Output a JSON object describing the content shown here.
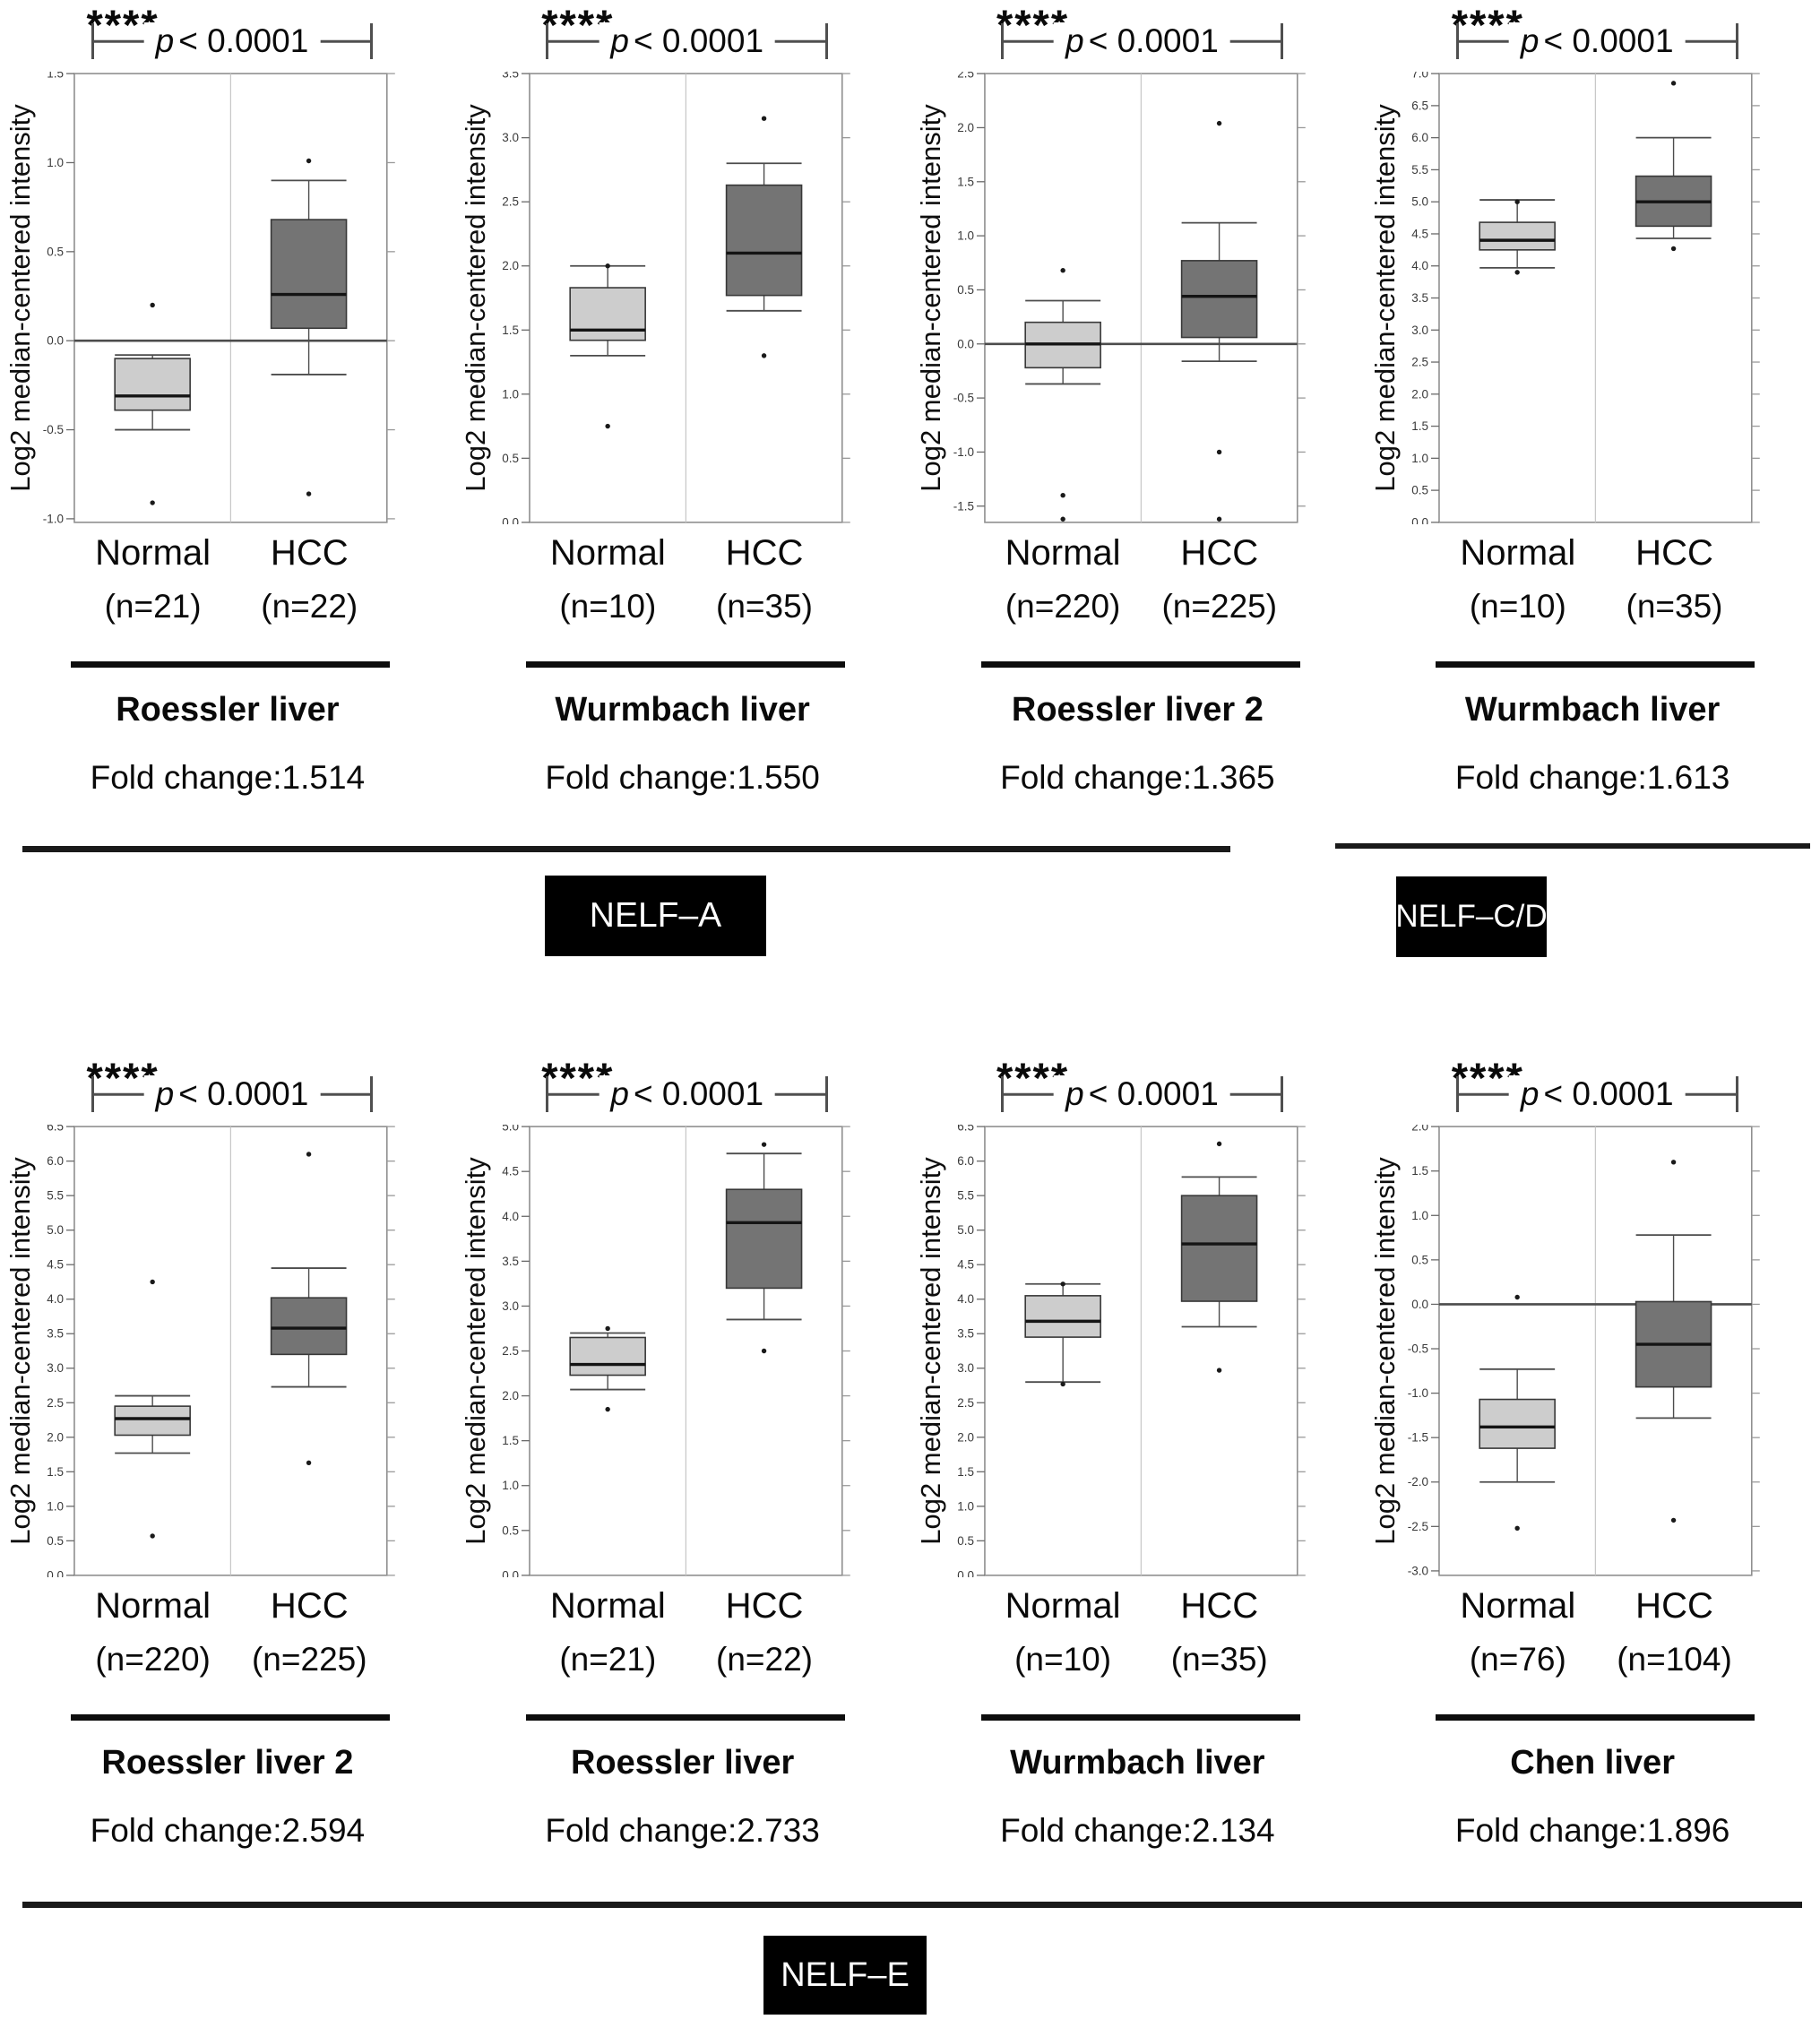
{
  "figure": {
    "significance_stars": "****",
    "p_symbol": "p",
    "p_rest": "< 0.0001",
    "ylabel": "Log2 median-centered intensity",
    "group_categories": [
      "Normal",
      "HCC"
    ],
    "colors": {
      "normal_box_fill": "#cdcdcd",
      "hcc_box_fill": "#747474",
      "box_stroke": "#383838",
      "median_line": "#141414",
      "whisker": "#4c4c4c",
      "frame": "#8f8f8f",
      "divider": "#c6c6c6",
      "zero_line": "#4c4c4c",
      "section_tag_bg": "#000000",
      "section_tag_text": "#ffffff"
    },
    "sections": [
      {
        "label": "NELF–A"
      },
      {
        "label": "NELF–C/D"
      },
      {
        "label": "NELF–E"
      }
    ]
  },
  "chart_data": [
    {
      "type": "box",
      "row": 0,
      "col": 0,
      "section": "NELF–A",
      "title": "Roessler liver",
      "dataset": "Roessler liver",
      "fold_change": 1.514,
      "fold_change_label": "Fold change:1.514",
      "significance": "****",
      "p_label": "p < 0.0001",
      "ylabel": "Log2 median-centered intensity",
      "categories": [
        "Normal",
        "HCC"
      ],
      "y_axis": {
        "top": 1.5,
        "bottom": -1.02,
        "ticks": [
          1.5,
          1.0,
          0.5,
          0.0,
          -0.5,
          -1.0
        ]
      },
      "zero_line": true,
      "groups": [
        {
          "label": "Normal",
          "n": "(n=21)",
          "fill": "#cdcdcd",
          "whisker_low": -0.5,
          "q1": -0.39,
          "median": -0.31,
          "q3": -0.1,
          "whisker_high": -0.08,
          "outliers": [
            0.2,
            -0.91
          ]
        },
        {
          "label": "HCC",
          "n": "(n=22)",
          "fill": "#747474",
          "whisker_low": -0.19,
          "q1": 0.07,
          "median": 0.26,
          "q3": 0.68,
          "whisker_high": 0.9,
          "outliers": [
            1.01,
            -0.86
          ]
        }
      ]
    },
    {
      "type": "box",
      "row": 0,
      "col": 1,
      "section": "NELF–A",
      "title": "Wurmbach liver",
      "dataset": "Wurmbach liver",
      "fold_change": 1.55,
      "fold_change_label": "Fold change:1.550",
      "significance": "****",
      "p_label": "p < 0.0001",
      "ylabel": "Log2 median-centered intensity",
      "categories": [
        "Normal",
        "HCC"
      ],
      "y_axis": {
        "top": 3.5,
        "bottom": 0.0,
        "ticks": [
          3.5,
          3.0,
          2.5,
          2.0,
          1.5,
          1.0,
          0.5,
          0.0
        ]
      },
      "zero_line": false,
      "groups": [
        {
          "label": "Normal",
          "n": "(n=10)",
          "fill": "#cdcdcd",
          "whisker_low": 1.3,
          "q1": 1.42,
          "median": 1.5,
          "q3": 1.83,
          "whisker_high": 2.0,
          "outliers": [
            2.0,
            0.75
          ]
        },
        {
          "label": "HCC",
          "n": "(n=35)",
          "fill": "#747474",
          "whisker_low": 1.65,
          "q1": 1.77,
          "median": 2.1,
          "q3": 2.63,
          "whisker_high": 2.8,
          "outliers": [
            3.15,
            1.3
          ]
        }
      ]
    },
    {
      "type": "box",
      "row": 0,
      "col": 2,
      "section": "NELF–A",
      "title": "Roessler liver 2",
      "dataset": "Roessler liver 2",
      "fold_change": 1.365,
      "fold_change_label": "Fold change:1.365",
      "significance": "****",
      "p_label": "p < 0.0001",
      "ylabel": "Log2 median-centered intensity",
      "categories": [
        "Normal",
        "HCC"
      ],
      "y_axis": {
        "top": 2.5,
        "bottom": -1.65,
        "ticks": [
          2.5,
          2.0,
          1.5,
          1.0,
          0.5,
          0.0,
          -0.5,
          -1.0,
          -1.5
        ]
      },
      "zero_line": true,
      "groups": [
        {
          "label": "Normal",
          "n": "(n=220)",
          "fill": "#cdcdcd",
          "whisker_low": -0.37,
          "q1": -0.22,
          "median": 0.0,
          "q3": 0.2,
          "whisker_high": 0.4,
          "outliers": [
            0.68,
            -1.4,
            -1.62
          ]
        },
        {
          "label": "HCC",
          "n": "(n=225)",
          "fill": "#747474",
          "whisker_low": -0.16,
          "q1": 0.06,
          "median": 0.44,
          "q3": 0.77,
          "whisker_high": 1.12,
          "outliers": [
            2.04,
            -1.0,
            -1.62
          ]
        }
      ]
    },
    {
      "type": "box",
      "row": 0,
      "col": 3,
      "section": "NELF–C/D",
      "title": "Wurmbach liver",
      "dataset": "Wurmbach liver",
      "fold_change": 1.613,
      "fold_change_label": "Fold change:1.613",
      "significance": "****",
      "p_label": "p < 0.0001",
      "ylabel": "Log2 median-centered intensity",
      "categories": [
        "Normal",
        "HCC"
      ],
      "y_axis": {
        "top": 7.0,
        "bottom": 0.0,
        "ticks": [
          7.0,
          6.5,
          6.0,
          5.5,
          5.0,
          4.5,
          4.0,
          3.5,
          3.0,
          2.5,
          2.0,
          1.5,
          1.0,
          0.5,
          0.0
        ]
      },
      "zero_line": false,
      "groups": [
        {
          "label": "Normal",
          "n": "(n=10)",
          "fill": "#cdcdcd",
          "whisker_low": 3.97,
          "q1": 4.25,
          "median": 4.4,
          "q3": 4.68,
          "whisker_high": 5.03,
          "outliers": [
            5.0,
            3.9
          ]
        },
        {
          "label": "HCC",
          "n": "(n=35)",
          "fill": "#747474",
          "whisker_low": 4.43,
          "q1": 4.62,
          "median": 5.0,
          "q3": 5.4,
          "whisker_high": 6.0,
          "outliers": [
            6.85,
            4.27
          ]
        }
      ]
    },
    {
      "type": "box",
      "row": 1,
      "col": 0,
      "section": "NELF–E",
      "title": "Roessler liver 2",
      "dataset": "Roessler liver 2",
      "fold_change": 2.594,
      "fold_change_label": "Fold change:2.594",
      "significance": "****",
      "p_label": "p < 0.0001",
      "ylabel": "Log2 median-centered intensity",
      "categories": [
        "Normal",
        "HCC"
      ],
      "y_axis": {
        "top": 6.5,
        "bottom": 0.0,
        "ticks": [
          6.5,
          6.0,
          5.5,
          5.0,
          4.5,
          4.0,
          3.5,
          3.0,
          2.5,
          2.0,
          1.5,
          1.0,
          0.5,
          0.0
        ]
      },
      "zero_line": false,
      "groups": [
        {
          "label": "Normal",
          "n": "(n=220)",
          "fill": "#cdcdcd",
          "whisker_low": 1.77,
          "q1": 2.03,
          "median": 2.27,
          "q3": 2.45,
          "whisker_high": 2.6,
          "outliers": [
            4.25,
            0.57
          ]
        },
        {
          "label": "HCC",
          "n": "(n=225)",
          "fill": "#747474",
          "whisker_low": 2.73,
          "q1": 3.2,
          "median": 3.58,
          "q3": 4.02,
          "whisker_high": 4.45,
          "outliers": [
            6.1,
            1.63
          ]
        }
      ]
    },
    {
      "type": "box",
      "row": 1,
      "col": 1,
      "section": "NELF–E",
      "title": "Roessler liver",
      "dataset": "Roessler liver",
      "fold_change": 2.733,
      "fold_change_label": "Fold change:2.733",
      "significance": "****",
      "p_label": "p < 0.0001",
      "ylabel": "Log2 median-centered intensity",
      "categories": [
        "Normal",
        "HCC"
      ],
      "y_axis": {
        "top": 5.0,
        "bottom": 0.0,
        "ticks": [
          5.0,
          4.5,
          4.0,
          3.5,
          3.0,
          2.5,
          2.0,
          1.5,
          1.0,
          0.5,
          0.0
        ]
      },
      "zero_line": false,
      "groups": [
        {
          "label": "Normal",
          "n": "(n=21)",
          "fill": "#cdcdcd",
          "whisker_low": 2.07,
          "q1": 2.23,
          "median": 2.35,
          "q3": 2.65,
          "whisker_high": 2.7,
          "outliers": [
            2.75,
            1.85
          ]
        },
        {
          "label": "HCC",
          "n": "(n=22)",
          "fill": "#747474",
          "whisker_low": 2.85,
          "q1": 3.2,
          "median": 3.93,
          "q3": 4.3,
          "whisker_high": 4.7,
          "outliers": [
            4.8,
            2.5
          ]
        }
      ]
    },
    {
      "type": "box",
      "row": 1,
      "col": 2,
      "section": "NELF–E",
      "title": "Wurmbach liver",
      "dataset": "Wurmbach liver",
      "fold_change": 2.134,
      "fold_change_label": "Fold change:2.134",
      "significance": "****",
      "p_label": "p < 0.0001",
      "ylabel": "Log2 median-centered intensity",
      "categories": [
        "Normal",
        "HCC"
      ],
      "y_axis": {
        "top": 6.5,
        "bottom": 0.0,
        "ticks": [
          6.5,
          6.0,
          5.5,
          5.0,
          4.5,
          4.0,
          3.5,
          3.0,
          2.5,
          2.0,
          1.5,
          1.0,
          0.5,
          0.0
        ]
      },
      "zero_line": false,
      "groups": [
        {
          "label": "Normal",
          "n": "(n=10)",
          "fill": "#cdcdcd",
          "whisker_low": 2.8,
          "q1": 3.45,
          "median": 3.68,
          "q3": 4.05,
          "whisker_high": 4.22,
          "outliers": [
            4.22,
            2.77
          ]
        },
        {
          "label": "HCC",
          "n": "(n=35)",
          "fill": "#747474",
          "whisker_low": 3.6,
          "q1": 3.97,
          "median": 4.8,
          "q3": 5.5,
          "whisker_high": 5.77,
          "outliers": [
            6.25,
            2.97
          ]
        }
      ]
    },
    {
      "type": "box",
      "row": 1,
      "col": 3,
      "section": "NELF–E",
      "title": "Chen liver",
      "dataset": "Chen liver",
      "fold_change": 1.896,
      "fold_change_label": "Fold change:1.896",
      "significance": "****",
      "p_label": "p < 0.0001",
      "ylabel": "Log2 median-centered intensity",
      "categories": [
        "Normal",
        "HCC"
      ],
      "y_axis": {
        "top": 2.0,
        "bottom": -3.05,
        "ticks": [
          2.0,
          1.5,
          1.0,
          0.5,
          0.0,
          -0.5,
          -1.0,
          -1.5,
          -2.0,
          -2.5,
          -3.0
        ]
      },
      "zero_line": true,
      "groups": [
        {
          "label": "Normal",
          "n": "(n=76)",
          "fill": "#cdcdcd",
          "whisker_low": -2.0,
          "q1": -1.62,
          "median": -1.38,
          "q3": -1.07,
          "whisker_high": -0.73,
          "outliers": [
            0.08,
            -2.52
          ]
        },
        {
          "label": "HCC",
          "n": "(n=104)",
          "fill": "#747474",
          "whisker_low": -1.28,
          "q1": -0.93,
          "median": -0.45,
          "q3": 0.03,
          "whisker_high": 0.78,
          "outliers": [
            1.6,
            -2.43
          ]
        }
      ]
    }
  ]
}
